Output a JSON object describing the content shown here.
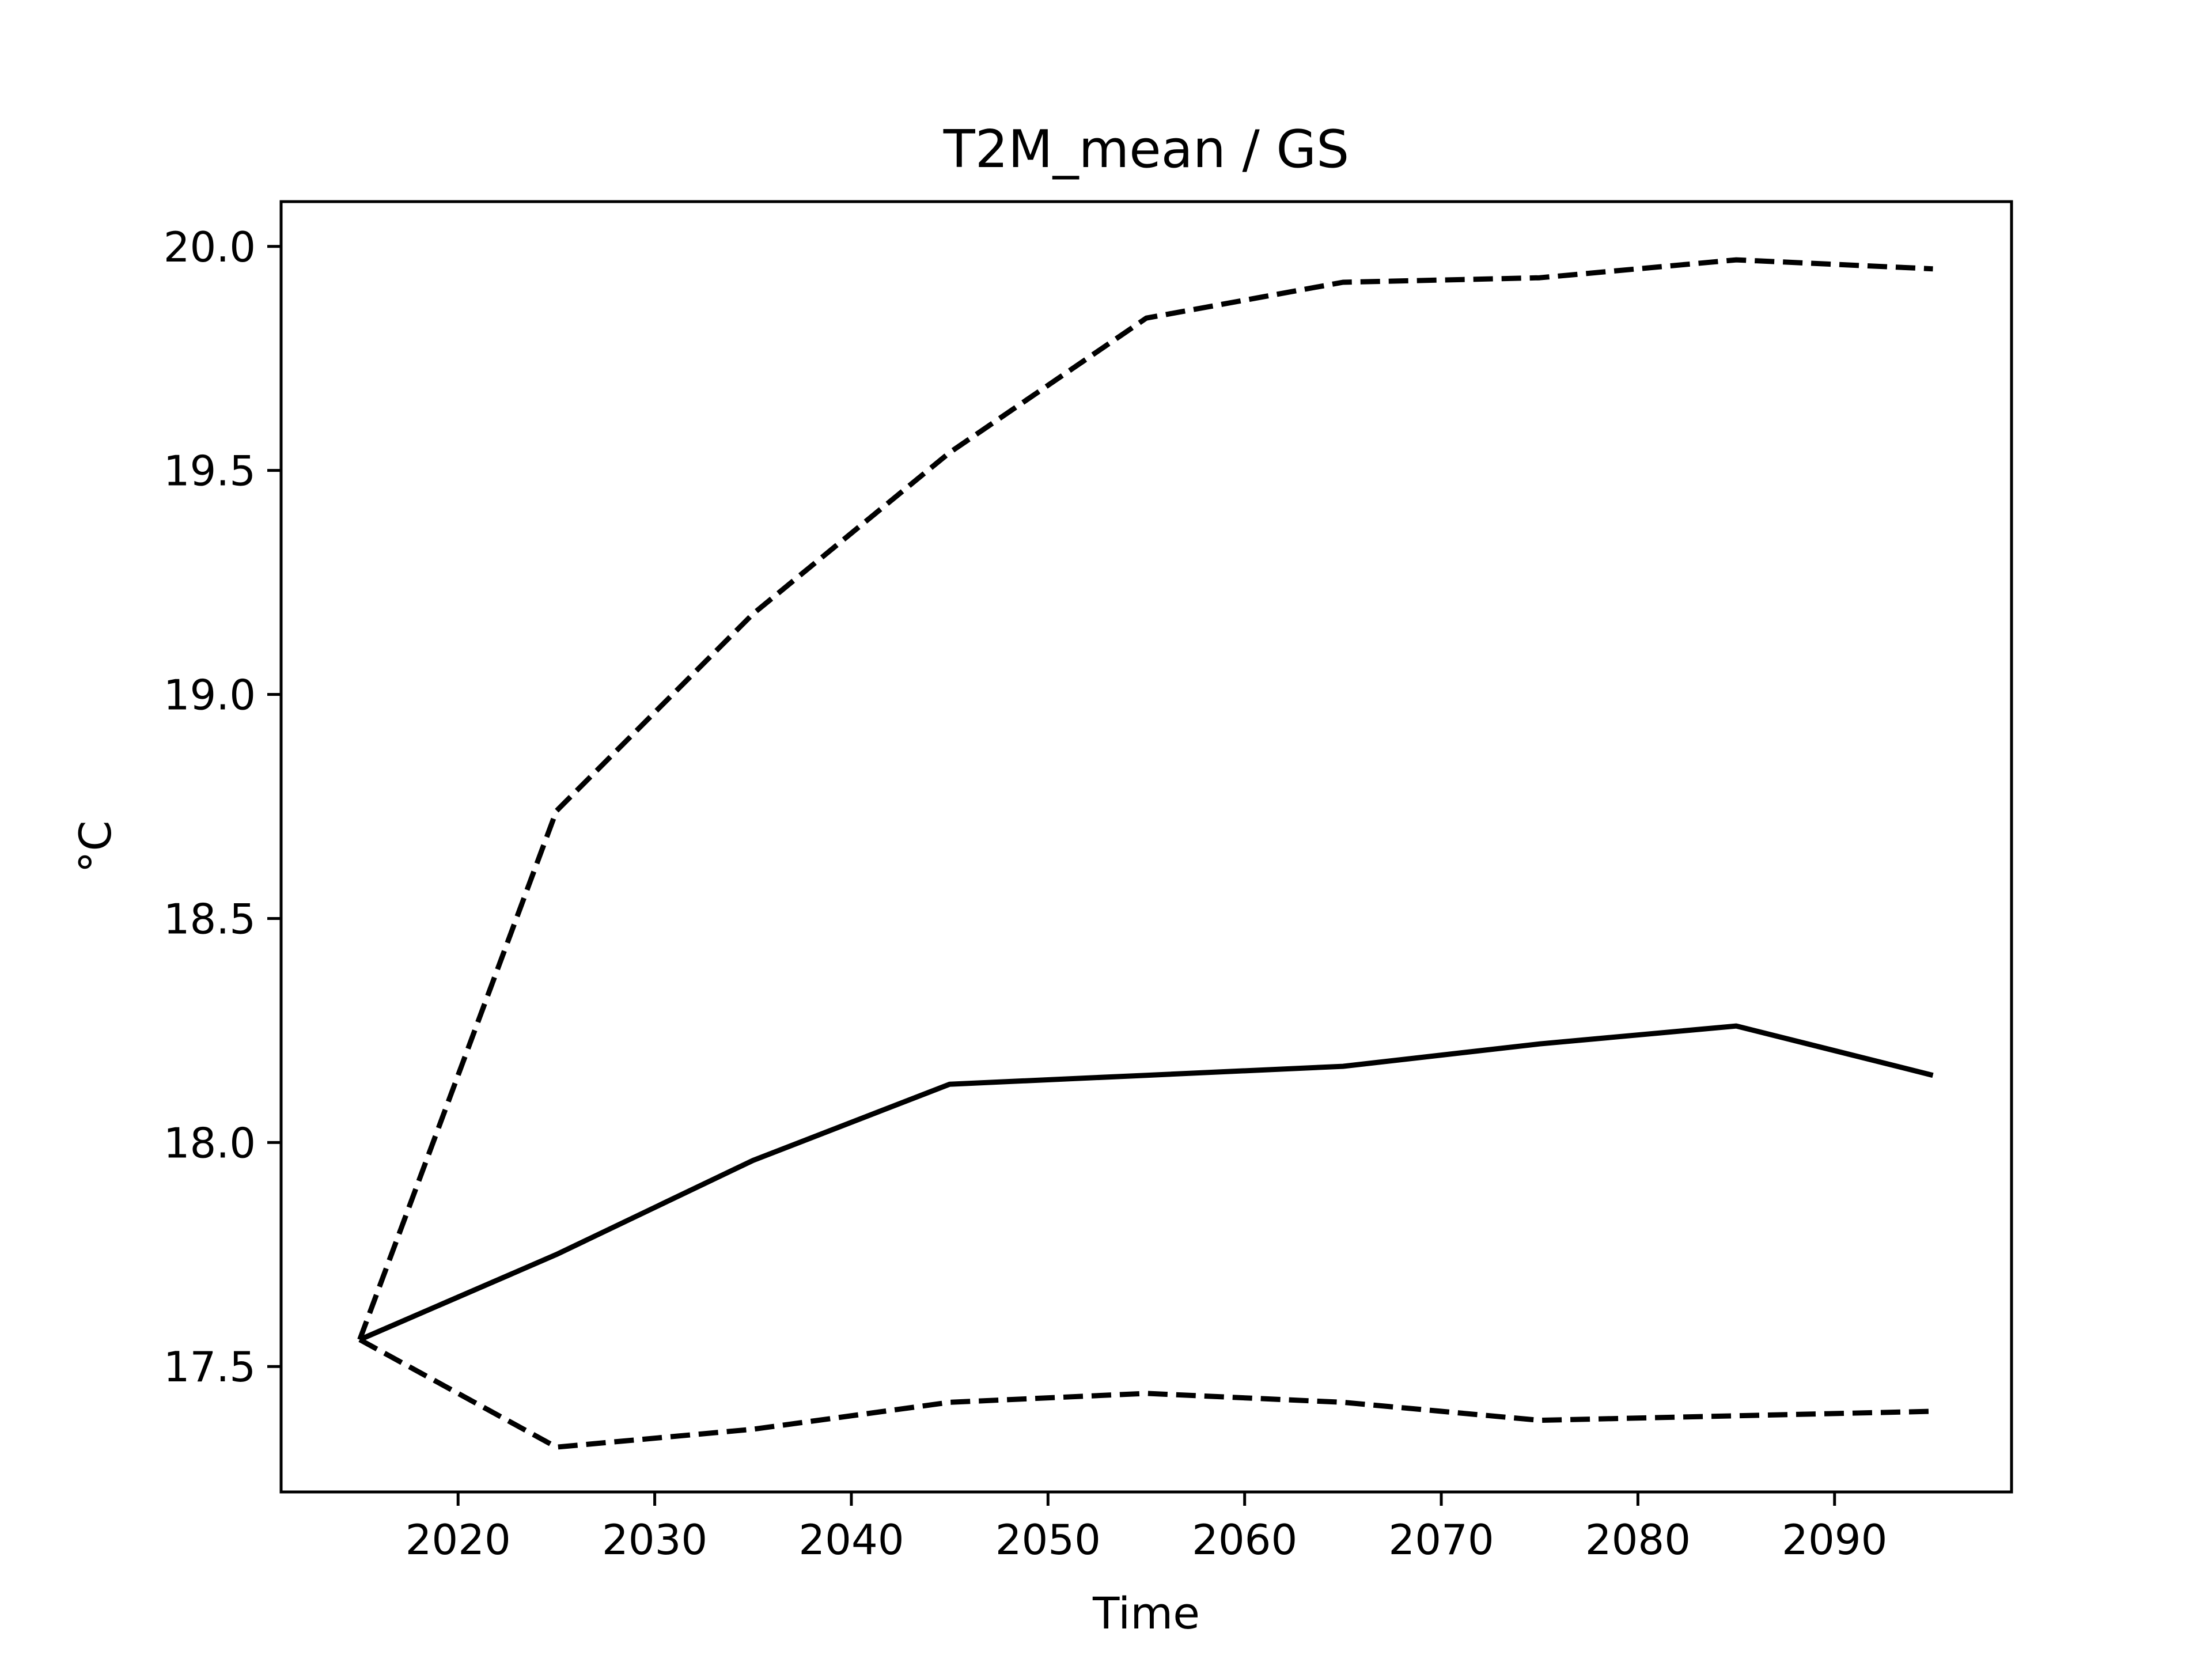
{
  "chart_data": {
    "type": "line",
    "title": "T2M_mean / GS",
    "xlabel": "Time",
    "ylabel": "°C",
    "xlim": [
      2011,
      2099
    ],
    "ylim": [
      17.22,
      20.1
    ],
    "xticks": [
      2020,
      2030,
      2040,
      2050,
      2060,
      2070,
      2080,
      2090
    ],
    "yticks": [
      17.5,
      18.0,
      18.5,
      19.0,
      19.5,
      20.0
    ],
    "xtick_labels": [
      "2020",
      "2030",
      "2040",
      "2050",
      "2060",
      "2070",
      "2080",
      "2090"
    ],
    "ytick_labels": [
      "17.5",
      "18.0",
      "18.5",
      "19.0",
      "19.5",
      "20.0"
    ],
    "grid": false,
    "series": [
      {
        "style": "dashed",
        "color": "#000000",
        "x": [
          2015,
          2025,
          2035,
          2045,
          2055,
          2065,
          2075,
          2085,
          2095
        ],
        "y": [
          17.56,
          18.74,
          19.18,
          19.54,
          19.84,
          19.92,
          19.93,
          19.97,
          19.95
        ]
      },
      {
        "style": "solid",
        "color": "#000000",
        "x": [
          2015,
          2025,
          2035,
          2045,
          2055,
          2065,
          2075,
          2085,
          2095
        ],
        "y": [
          17.56,
          17.75,
          17.96,
          18.13,
          18.15,
          18.17,
          18.22,
          18.26,
          18.15
        ]
      },
      {
        "style": "dashed",
        "color": "#000000",
        "x": [
          2015,
          2025,
          2035,
          2045,
          2055,
          2065,
          2075,
          2085,
          2095
        ],
        "y": [
          17.56,
          17.32,
          17.36,
          17.42,
          17.44,
          17.42,
          17.38,
          17.39,
          17.4
        ]
      }
    ]
  }
}
